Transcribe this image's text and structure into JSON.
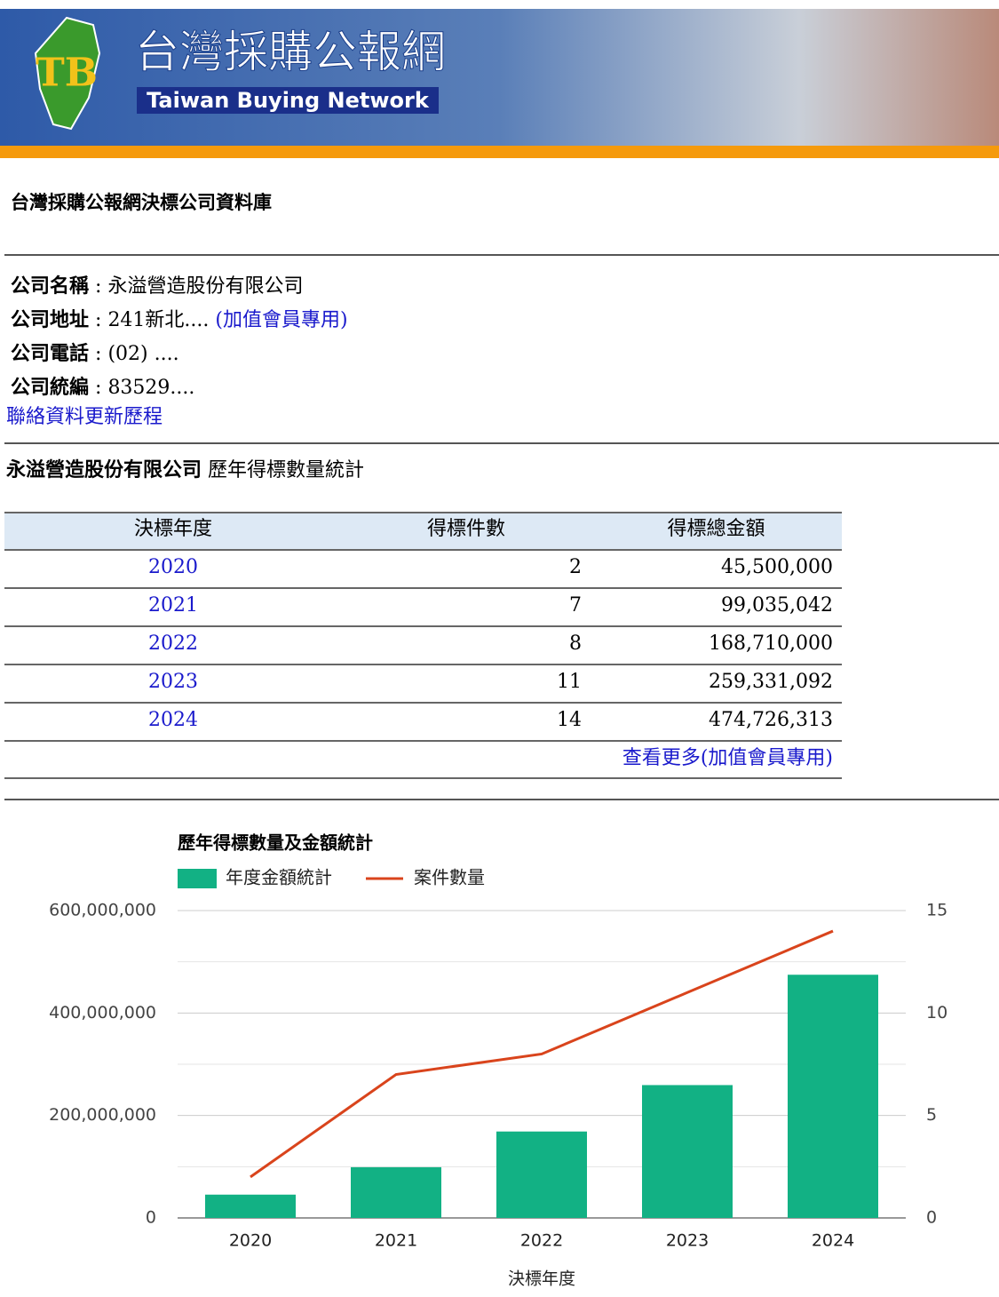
{
  "header": {
    "logo": "TB",
    "title": "台灣採購公報網",
    "subtitle": "Taiwan Buying Network"
  },
  "page_title": "台灣採購公報網決標公司資料庫",
  "company": {
    "separator": ":",
    "fields": [
      {
        "label": "公司名稱",
        "value": "永溢營造股份有限公司"
      },
      {
        "label": "公司地址",
        "value": "241新北....",
        "link": "(加值會員專用)"
      },
      {
        "label": "公司電話",
        "value": "(02) ...."
      },
      {
        "label": "公司統編",
        "value": "83529...."
      }
    ],
    "history_link": "聯絡資料更新歷程"
  },
  "stats_title": {
    "company": "永溢營造股份有限公司",
    "text": "歷年得標數量統計"
  },
  "table": {
    "header": [
      "決標年度",
      "得標件數",
      "得標總金額"
    ],
    "rows": [
      [
        "2020",
        "2",
        "45,500,000"
      ],
      [
        "2021",
        "7",
        "99,035,042"
      ],
      [
        "2022",
        "8",
        "168,710,000"
      ],
      [
        "2023",
        "11",
        "259,331,092"
      ],
      [
        "2024",
        "14",
        "474,726,313"
      ]
    ],
    "more_link": "查看更多(加值會員專用)"
  },
  "chart_data": {
    "type": "combo",
    "title": "歷年得標數量及金額統計",
    "categories": [
      "2020",
      "2021",
      "2022",
      "2023",
      "2024"
    ],
    "series": [
      {
        "name": "年度金額統計",
        "type": "bar",
        "color": "#12b184",
        "values": [
          45500000,
          99035042,
          168710000,
          259331092,
          474726313
        ]
      },
      {
        "name": "案件數量",
        "type": "line",
        "axis": "y2",
        "color": "#d9441c",
        "values": [
          2,
          7,
          8,
          11,
          14
        ]
      }
    ],
    "ylim": [
      0,
      600000000
    ],
    "yticks": [
      0,
      {
        "value": 200000000,
        "label": "200,000,000"
      },
      {
        "value": 400000000,
        "label": "400,000,000"
      },
      {
        "value": 600000000,
        "label": "600,000,000"
      }
    ],
    "minor_yticks": [
      100000000,
      300000000,
      500000000
    ],
    "y2lim": [
      0,
      15
    ],
    "y2ticks": [
      0,
      5,
      10,
      15
    ],
    "x_label": "決標年度",
    "grid": true
  }
}
